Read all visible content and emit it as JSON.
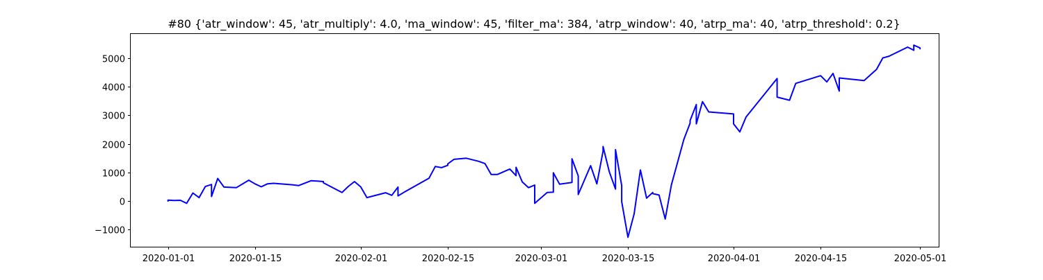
{
  "chart_data": {
    "type": "line",
    "title": "#80 {'atr_window': 45, 'atr_multiply': 4.0, 'ma_window': 45, 'filter_ma': 384, 'atrp_window': 40, 'atrp_ma': 40, 'atrp_threshold': 0.2}",
    "xlabel": "",
    "ylabel": "",
    "x_axis_type": "date",
    "xlim": [
      "2019-12-26",
      "2020-05-04"
    ],
    "ylim": [
      -1600,
      5850
    ],
    "x_ticks": [
      "2020-01-01",
      "2020-01-15",
      "2020-02-01",
      "2020-02-15",
      "2020-03-01",
      "2020-03-15",
      "2020-04-01",
      "2020-04-15",
      "2020-05-01"
    ],
    "x_tick_labels": [
      "2020-01-01",
      "2020-01-15",
      "2020-02-01",
      "2020-02-15",
      "2020-03-01",
      "2020-03-15",
      "2020-04-01",
      "2020-04-15",
      "2020-05-01"
    ],
    "y_ticks": [
      -1000,
      0,
      1000,
      2000,
      3000,
      4000,
      5000
    ],
    "y_tick_labels": [
      "−1000",
      "0",
      "1000",
      "2000",
      "3000",
      "4000",
      "5000"
    ],
    "grid": false,
    "line_color": "#0000ff",
    "series": [
      {
        "x": [
          "2020-01-01",
          "2020-01-01",
          "2020-01-02",
          "2020-01-03",
          "2020-01-04",
          "2020-01-05",
          "2020-01-06",
          "2020-01-07",
          "2020-01-08",
          "2020-01-08",
          "2020-01-09",
          "2020-01-10",
          "2020-01-12",
          "2020-01-14",
          "2020-01-15",
          "2020-01-16",
          "2020-01-17",
          "2020-01-18",
          "2020-01-21",
          "2020-01-22",
          "2020-01-24",
          "2020-01-25",
          "2020-01-26",
          "2020-01-26",
          "2020-01-29",
          "2020-01-30",
          "2020-01-31",
          "2020-02-01",
          "2020-02-02",
          "2020-02-05",
          "2020-02-06",
          "2020-02-07",
          "2020-02-07",
          "2020-02-08",
          "2020-02-12",
          "2020-02-13",
          "2020-02-14",
          "2020-02-15",
          "2020-02-15",
          "2020-02-16",
          "2020-02-18",
          "2020-02-20",
          "2020-02-21",
          "2020-02-22",
          "2020-02-23",
          "2020-02-25",
          "2020-02-26",
          "2020-02-26",
          "2020-02-27",
          "2020-02-28",
          "2020-02-29",
          "2020-02-29",
          "2020-03-02",
          "2020-03-03",
          "2020-03-03",
          "2020-03-04",
          "2020-03-06",
          "2020-03-06",
          "2020-03-07",
          "2020-03-07",
          "2020-03-09",
          "2020-03-10",
          "2020-03-11",
          "2020-03-11",
          "2020-03-12",
          "2020-03-13",
          "2020-03-13",
          "2020-03-14",
          "2020-03-14",
          "2020-03-15",
          "2020-03-16",
          "2020-03-17",
          "2020-03-18",
          "2020-03-19",
          "2020-03-19",
          "2020-03-20",
          "2020-03-21",
          "2020-03-22",
          "2020-03-24",
          "2020-03-25",
          "2020-03-25",
          "2020-03-26",
          "2020-03-26",
          "2020-03-27",
          "2020-03-28",
          "2020-04-01",
          "2020-04-01",
          "2020-04-02",
          "2020-04-03",
          "2020-04-08",
          "2020-04-08",
          "2020-04-10",
          "2020-04-11",
          "2020-04-15",
          "2020-04-16",
          "2020-04-17",
          "2020-04-18",
          "2020-04-18",
          "2020-04-22",
          "2020-04-24",
          "2020-04-25",
          "2020-04-26",
          "2020-04-29",
          "2020-04-30",
          "2020-04-30",
          "2020-05-01",
          "2020-05-01"
        ],
        "values": [
          0,
          30,
          20,
          25,
          -80,
          280,
          120,
          510,
          580,
          160,
          790,
          490,
          470,
          730,
          600,
          500,
          600,
          620,
          570,
          540,
          710,
          700,
          680,
          640,
          300,
          510,
          680,
          500,
          120,
          290,
          200,
          490,
          180,
          310,
          800,
          1210,
          1170,
          1250,
          1300,
          1460,
          1500,
          1390,
          1310,
          930,
          930,
          1120,
          890,
          1180,
          670,
          470,
          560,
          -80,
          300,
          310,
          990,
          590,
          650,
          1480,
          880,
          230,
          1240,
          600,
          1750,
          1910,
          1020,
          420,
          1800,
          540,
          -20,
          -1270,
          -450,
          1090,
          100,
          300,
          260,
          210,
          -630,
          570,
          2160,
          2730,
          2820,
          3380,
          2700,
          3480,
          3120,
          3050,
          2700,
          2420,
          2940,
          4290,
          3640,
          3530,
          4120,
          4390,
          4170,
          4470,
          3850,
          4310,
          4220,
          4610,
          5010,
          5070,
          5390,
          5280,
          5460,
          5360,
          5330
        ]
      }
    ]
  }
}
